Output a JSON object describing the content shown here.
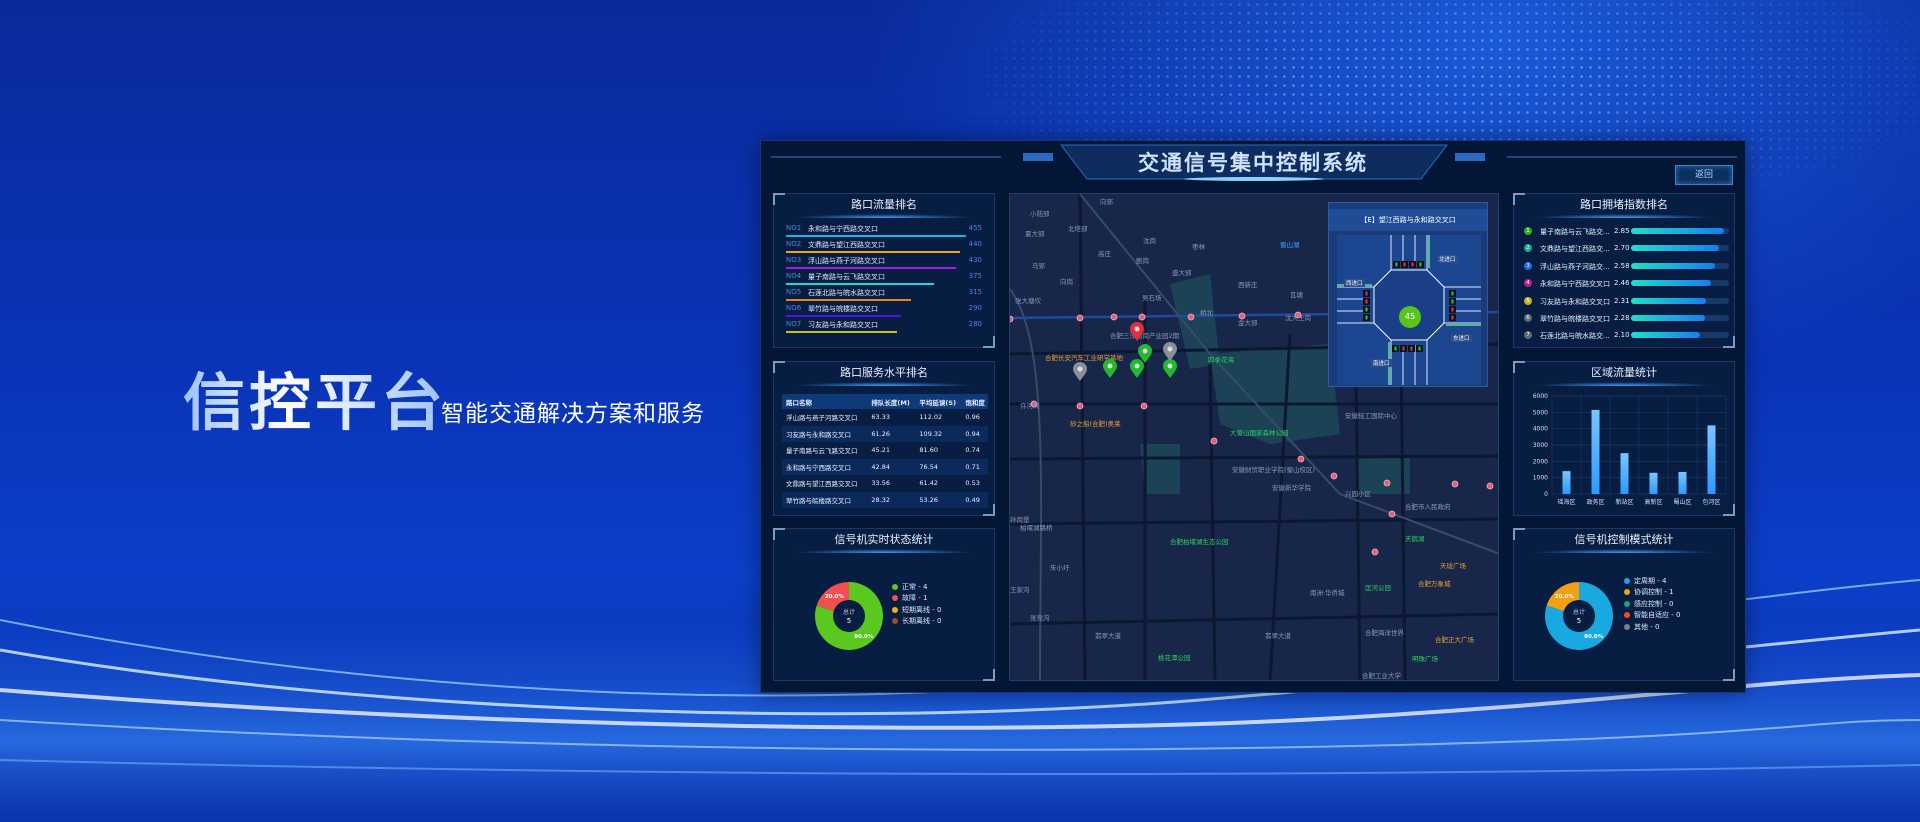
{
  "hero": {
    "title": "信控平台",
    "subtitle": "智能交通解决方案和服务"
  },
  "header": {
    "title": "交通信号集中控制系统",
    "back_label": "返回"
  },
  "flow_rank": {
    "title": "路口流量排名",
    "items": [
      {
        "no": "NO1",
        "name": "永和路与宁西路交叉口",
        "value": 455,
        "color": "#18b4f0"
      },
      {
        "no": "NO2",
        "name": "文鼎路与望江西路交叉口",
        "value": 440,
        "color": "#f0a020"
      },
      {
        "no": "NO3",
        "name": "浮山路与燕子河路交叉口",
        "value": 430,
        "color": "#a020e0"
      },
      {
        "no": "NO4",
        "name": "量子南路与云飞路交叉口",
        "value": 375,
        "color": "#18d8d8"
      },
      {
        "no": "NO5",
        "name": "石莲北路与皖水路交叉口",
        "value": 315,
        "color": "#f08020"
      },
      {
        "no": "NO6",
        "name": "翠竹路与皖楼路交叉口",
        "value": 290,
        "color": "#5010f0"
      },
      {
        "no": "NO7",
        "name": "习友路与永和路交叉口",
        "value": 280,
        "color": "#c8c020"
      }
    ]
  },
  "service_rank": {
    "title": "路口服务水平排名",
    "columns": [
      "路口名称",
      "排队长度(M)",
      "平均延误(S)",
      "饱和度"
    ],
    "rows": [
      [
        "浮山路与燕子河路交叉口",
        "63.33",
        "112.02",
        "0.96"
      ],
      [
        "习友路与永和路交叉口",
        "61.26",
        "109.32",
        "0.94"
      ],
      [
        "量子南路与云飞路交叉口",
        "45.21",
        "81.60",
        "0.74"
      ],
      [
        "永和路与宁西路交叉口",
        "42.84",
        "76.54",
        "0.71"
      ],
      [
        "文鼎路与望江西路交叉口",
        "33.56",
        "61.42",
        "0.53"
      ],
      [
        "翠竹路与皖楼路交叉口",
        "28.32",
        "53.26",
        "0.49"
      ]
    ]
  },
  "signal_status": {
    "title": "信号机实时状态统计",
    "center_label": "总计",
    "total": "5",
    "slices": [
      {
        "label": "正常 - 4",
        "value": 4,
        "pct": "80.0%",
        "color": "#5ac81e"
      },
      {
        "label": "故障 - 1",
        "value": 1,
        "pct": "20.0%",
        "color": "#f05050"
      },
      {
        "label": "短期离线 - 0",
        "value": 0,
        "pct": "",
        "color": "#f0b010"
      },
      {
        "label": "长期离线 - 0",
        "value": 0,
        "pct": "",
        "color": "#a0501a"
      }
    ]
  },
  "congestion_rank": {
    "title": "路口拥堵指数排名",
    "max": 3.0,
    "items": [
      {
        "rank": "1",
        "name": "量子南路与云飞路交...",
        "value": "2.85",
        "color": "#3aa81e"
      },
      {
        "rank": "2",
        "name": "文鼎路与望江西路交...",
        "value": "2.70",
        "color": "#1ea890"
      },
      {
        "rank": "3",
        "name": "浮山路与燕子河路交...",
        "value": "2.58",
        "color": "#1e6ae0"
      },
      {
        "rank": "4",
        "name": "永和路与宁西路交叉口",
        "value": "2.46",
        "color": "#c01e90"
      },
      {
        "rank": "5",
        "name": "习友路与永和路交叉口",
        "value": "2.31",
        "color": "#c8b01e"
      },
      {
        "rank": "6",
        "name": "翠竹路与皖楼路交叉口",
        "value": "2.28",
        "color": "#606a70"
      },
      {
        "rank": "7",
        "name": "石莲北路与皖水路交...",
        "value": "2.10",
        "color": "#606a70"
      }
    ]
  },
  "region_flow": {
    "title": "区域流量统计",
    "chart_data": {
      "type": "bar",
      "categories": [
        "瑶海区",
        "政务区",
        "新站区",
        "高新区",
        "蜀山区",
        "包河区"
      ],
      "values": [
        1400,
        5150,
        2500,
        1300,
        1350,
        4200
      ],
      "ylim": [
        0,
        6000
      ],
      "yticks": [
        "0",
        "1000",
        "2000",
        "3000",
        "4000",
        "5000",
        "6000"
      ],
      "grid": true,
      "color": "#2a9cff"
    }
  },
  "control_mode": {
    "title": "信号机控制模式统计",
    "center_label": "总计",
    "total": "5",
    "slices": [
      {
        "label": "定周期 - 4",
        "value": 4,
        "pct": "80.0%",
        "color": "#1aa8e0"
      },
      {
        "label": "协调控制 - 1",
        "value": 1,
        "pct": "20.0%",
        "color": "#f0a010"
      },
      {
        "label": "感应控制 - 0",
        "value": 0,
        "pct": "",
        "color": "#18a080"
      },
      {
        "label": "智能自适应 - 0",
        "value": 0,
        "pct": "",
        "color": "#f05020"
      },
      {
        "label": "其他 - 0",
        "value": 0,
        "pct": "",
        "color": "#808080"
      }
    ]
  },
  "intersection": {
    "title": "【E】望江西路与永和路交叉口",
    "north": "北进口",
    "south": "南进口",
    "west": "西进口",
    "east": "东进口",
    "countdown": "45"
  },
  "map": {
    "labels": [
      {
        "t": "小陆郢",
        "c": ""
      },
      {
        "t": "夏大郢",
        "c": ""
      },
      {
        "t": "北塔郢",
        "c": ""
      },
      {
        "t": "向郢",
        "c": ""
      },
      {
        "t": "马郢",
        "c": ""
      },
      {
        "t": "向岗",
        "c": ""
      },
      {
        "t": "高庄",
        "c": ""
      },
      {
        "t": "沈岗",
        "c": ""
      },
      {
        "t": "鲍岗",
        "c": ""
      },
      {
        "t": "枣林",
        "c": ""
      },
      {
        "t": "盛大郢",
        "c": ""
      },
      {
        "t": "吴石场",
        "c": ""
      },
      {
        "t": "张大塘坎",
        "c": ""
      },
      {
        "t": "桥北",
        "c": ""
      },
      {
        "t": "金大郢",
        "c": ""
      },
      {
        "t": "西新庄",
        "c": ""
      },
      {
        "t": "沈大王岗",
        "c": ""
      },
      {
        "t": "瓦塘",
        "c": ""
      },
      {
        "t": "蜀山湖",
        "c": "b"
      },
      {
        "t": "合肥三洋南岗产业园2期",
        "c": ""
      },
      {
        "t": "合肥长安汽车工业研学基地",
        "c": "o"
      },
      {
        "t": "四季花海",
        "c": "g"
      },
      {
        "t": "许河湾",
        "c": ""
      },
      {
        "t": "砂之船(合肥)奥莱",
        "c": "o"
      },
      {
        "t": "大蜀山国家森林公园",
        "c": "g"
      },
      {
        "t": "安徽财贸职业学院(蜀山校区)",
        "c": ""
      },
      {
        "t": "安徽新华学院",
        "c": ""
      },
      {
        "t": "安徽轻工国际中心",
        "c": ""
      },
      {
        "t": "兴园小区",
        "c": ""
      },
      {
        "t": "合肥市人民政府",
        "c": ""
      },
      {
        "t": "合肥柏堰湖生态公园",
        "c": "g"
      },
      {
        "t": "天鹅湖",
        "c": "g"
      },
      {
        "t": "天珑广场",
        "c": "o"
      },
      {
        "t": "合肥万象城",
        "c": "o"
      },
      {
        "t": "匡河公园",
        "c": "g"
      },
      {
        "t": "南洲·华侨城",
        "c": ""
      },
      {
        "t": "合肥海洋世界",
        "c": ""
      },
      {
        "t": "合肥正大广场",
        "c": "o"
      },
      {
        "t": "明珠广场",
        "c": "g"
      },
      {
        "t": "翡翠大道",
        "c": ""
      },
      {
        "t": "翡翠大道",
        "c": ""
      },
      {
        "t": "桃花潭公园",
        "c": "g"
      },
      {
        "t": "合肥工业大学",
        "c": ""
      },
      {
        "t": "柏堰湖路桥",
        "c": ""
      },
      {
        "t": "孙岗堡",
        "c": ""
      },
      {
        "t": "朱小圩",
        "c": ""
      },
      {
        "t": "王家沟",
        "c": ""
      },
      {
        "t": "张竞沟",
        "c": ""
      }
    ],
    "markers": [
      {
        "status": "fault",
        "color": "#e03040"
      },
      {
        "status": "normal",
        "color": "#22b830"
      },
      {
        "status": "normal",
        "color": "#22b830"
      },
      {
        "status": "normal",
        "color": "#22b830"
      },
      {
        "status": "normal",
        "color": "#22b830"
      },
      {
        "status": "offline",
        "color": "#8a8f98"
      },
      {
        "status": "offline",
        "color": "#8a8f98"
      }
    ]
  }
}
